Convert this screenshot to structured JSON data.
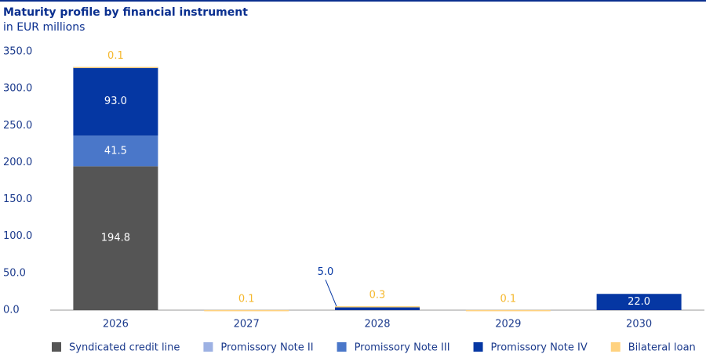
{
  "chart_data": {
    "type": "stacked_bar",
    "title": "Maturity profile by financial instrument",
    "subtitle": "in EUR millions",
    "categories": [
      "2026",
      "2027",
      "2028",
      "2029",
      "2030"
    ],
    "series": [
      {
        "name": "Syndicated credit line",
        "color": "#555555",
        "values": [
          194.8,
          null,
          null,
          null,
          null
        ],
        "value_labels": [
          "194.8",
          null,
          null,
          null,
          null
        ]
      },
      {
        "name": "Promissory Note II",
        "color": "#9db1e3",
        "values": [
          null,
          null,
          null,
          null,
          null
        ],
        "value_labels": [
          null,
          null,
          null,
          null,
          null
        ]
      },
      {
        "name": "Promissory Note III",
        "color": "#4a77c9",
        "values": [
          41.5,
          null,
          null,
          null,
          null
        ],
        "value_labels": [
          "41.5",
          null,
          null,
          null,
          null
        ]
      },
      {
        "name": "Promissory Note IV",
        "color": "#0537a3",
        "values": [
          93.0,
          null,
          5.0,
          null,
          22.0
        ],
        "value_labels": [
          "93.0",
          null,
          "5.0",
          null,
          "22.0"
        ]
      },
      {
        "name": "Bilateral loan",
        "color": "#ffd27f",
        "values": [
          0.1,
          0.1,
          0.3,
          0.1,
          null
        ],
        "value_labels": [
          "0.1",
          "0.1",
          "0.3",
          "0.1",
          null
        ]
      }
    ],
    "ylim": [
      0,
      350
    ],
    "yticks": [
      {
        "value": 0,
        "label": "0.0"
      },
      {
        "value": 50,
        "label": "50.0"
      },
      {
        "value": 100,
        "label": "100.0"
      },
      {
        "value": 150,
        "label": "150.0"
      },
      {
        "value": 200,
        "label": "200.0"
      },
      {
        "value": 250,
        "label": "250.0"
      },
      {
        "value": 300,
        "label": "300.0"
      },
      {
        "value": 350,
        "label": "350.0"
      }
    ]
  }
}
